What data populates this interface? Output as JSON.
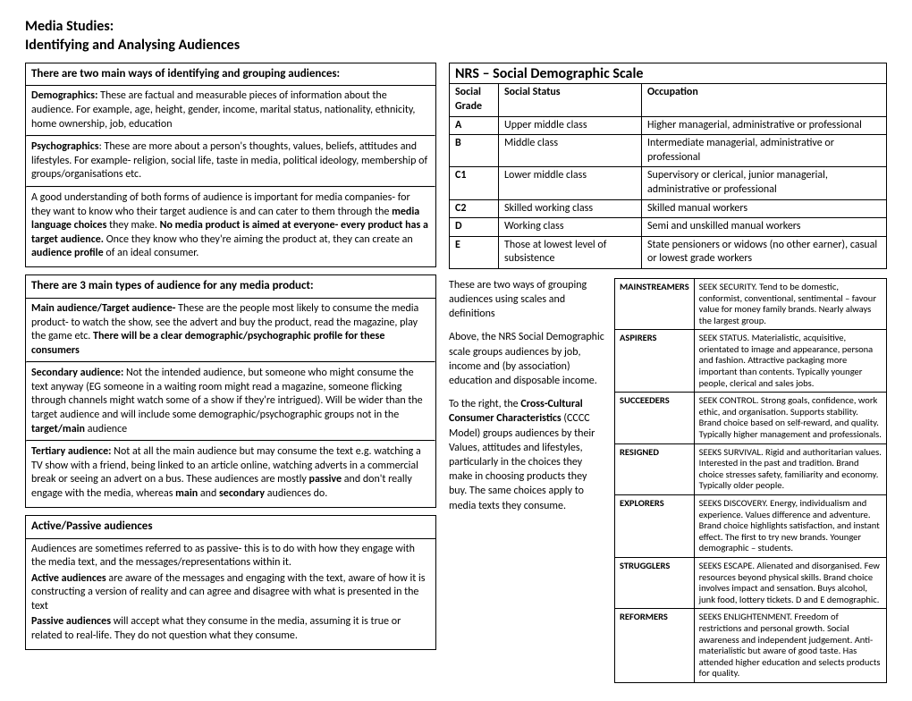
{
  "header": {
    "line1": "Media Studies:",
    "line2": "Identifying and Analysing Audiences"
  },
  "box1": {
    "title": "There are two main ways of identifying and grouping audiences:",
    "p1a": "Demographics:",
    "p1b": " These are factual and measurable pieces of information about the audience. For example, age, height, gender, income, marital status, nationality, ethnicity, home ownership, job, education",
    "p2a": "Psychographics",
    "p2b": ": These are more about a person's thoughts, values, beliefs, attitudes and lifestyles. For example- religion, social life, taste in media, political ideology, membership of groups/organisations etc.",
    "p3a": "A good understanding of both forms of audience is important for media companies- for they want to know who their target audience is and can cater to them through the ",
    "p3b": "media language choices",
    "p3c": " they make. ",
    "p3d": "No media product is aimed at everyone- every product has a target audience.",
    "p3e": " Once they know who they're aiming the product at, they can create an ",
    "p3f": "audience profile",
    "p3g": " of an ideal consumer."
  },
  "box2": {
    "title": "There are 3 main types of audience for any media product:",
    "p1a": "Main audience/Target audience-",
    "p1b": " These are the people most likely to consume the media product- to watch the show, see the advert and buy the product, read the magazine, play the game etc. ",
    "p1c": "There will be a clear demographic/psychographic profile for these consumers",
    "p2a": "Secondary audience:",
    "p2b": " Not the intended audience, but someone who might consume the text anyway (EG someone in a waiting room might read a magazine, someone flicking through channels might watch some of a show if they're intrigued). Will be wider than the target audience and will include some demographic/psychographic groups not in the ",
    "p2c": "target/main",
    "p2d": " audience",
    "p3a": "Tertiary audience:",
    "p3b": " Not at all the main audience but may consume the text e.g. watching a TV show with a friend, being linked to an article online, watching adverts in a commercial break or seeing an advert on a bus. These audiences are mostly ",
    "p3c": "passive",
    "p3d": " and don't really engage with the media, whereas ",
    "p3e": "main",
    "p3f": " and ",
    "p3g": "secondary",
    "p3h": " audiences do."
  },
  "box3": {
    "title": "Active/Passive audiences",
    "p1": "Audiences are sometimes referred to as passive- this is to do with how they engage with the media text, and the messages/representations within it.",
    "p2a": "Active audiences",
    "p2b": " are aware of the messages and engaging with the text, aware of how it is constructing a version of reality and can agree and disagree with what is presented in the text",
    "p3a": "Passive audiences",
    "p3b": " will accept what they consume in the media, assuming it is true or related to real-life. They do not question what they consume."
  },
  "nrs": {
    "title": "NRS – Social Demographic Scale",
    "headers": {
      "c1": "Social Grade",
      "c2": "Social Status",
      "c3": "Occupation"
    },
    "rows": [
      {
        "g": "A",
        "s": "Upper middle class",
        "o": "Higher managerial, administrative or professional"
      },
      {
        "g": "B",
        "s": "Middle class",
        "o": "Intermediate managerial, administrative or professional"
      },
      {
        "g": "C1",
        "s": "Lower middle class",
        "o": "Supervisory or clerical, junior managerial, administrative or professional"
      },
      {
        "g": "C2",
        "s": "Skilled working class",
        "o": "Skilled manual workers"
      },
      {
        "g": "D",
        "s": "Working class",
        "o": "Semi and unskilled manual workers"
      },
      {
        "g": "E",
        "s": "Those at lowest level of subsistence",
        "o": "State pensioners or widows (no other earner), casual or lowest grade workers"
      }
    ]
  },
  "explain": {
    "p1": "These are two ways of grouping audiences using scales and definitions",
    "p2": "Above, the NRS Social Demographic scale groups audiences by job, income and (by association) education and disposable income.",
    "p3a": "To the right, the ",
    "p3b": "Cross-Cultural Consumer Characteristics",
    "p3c": " (CCCC Model) groups audiences by their Values, attitudes and lifestyles, particularly in the choices they make in choosing products they buy. The same choices apply to media texts they consume."
  },
  "cccc": {
    "rows": [
      {
        "label": "MAINSTREAMERS",
        "desc": "SEEK SECURITY. Tend to be domestic, conformist, conventional, sentimental – favour value for money family brands. Nearly always the largest group."
      },
      {
        "label": "ASPIRERS",
        "desc": "SEEK STATUS. Materialistic, acquisitive, orientated to image and appearance, persona and fashion. Attractive packaging more important than contents. Typically younger people, clerical and sales jobs."
      },
      {
        "label": "SUCCEEDERS",
        "desc": "SEEK CONTROL. Strong goals, confidence, work ethic, and organisation. Supports stability. Brand choice based on self-reward, and quality. Typically higher management and professionals."
      },
      {
        "label": "RESIGNED",
        "desc": "SEEKS SURVIVAL. Rigid and authoritarian values. Interested in the past and tradition. Brand choice stresses safety, familiarity and economy. Typically older people."
      },
      {
        "label": "EXPLORERS",
        "desc": "SEEKS DISCOVERY. Energy, individualism and experience. Values difference and adventure. Brand choice highlights satisfaction, and instant effect. The first to try new brands. Younger demographic – students."
      },
      {
        "label": "STRUGGLERS",
        "desc": "SEEKS ESCAPE. Alienated and disorganised. Few resources beyond physical skills. Brand choice involves impact and sensation. Buys alcohol, junk food, lottery tickets. D and E demographic."
      },
      {
        "label": "REFORMERS",
        "desc": "SEEKS ENLIGHTENMENT. Freedom of restrictions and personal growth. Social awareness and independent judgement. Anti-materialistic but aware of good taste. Has attended higher education and selects products for quality."
      }
    ]
  }
}
